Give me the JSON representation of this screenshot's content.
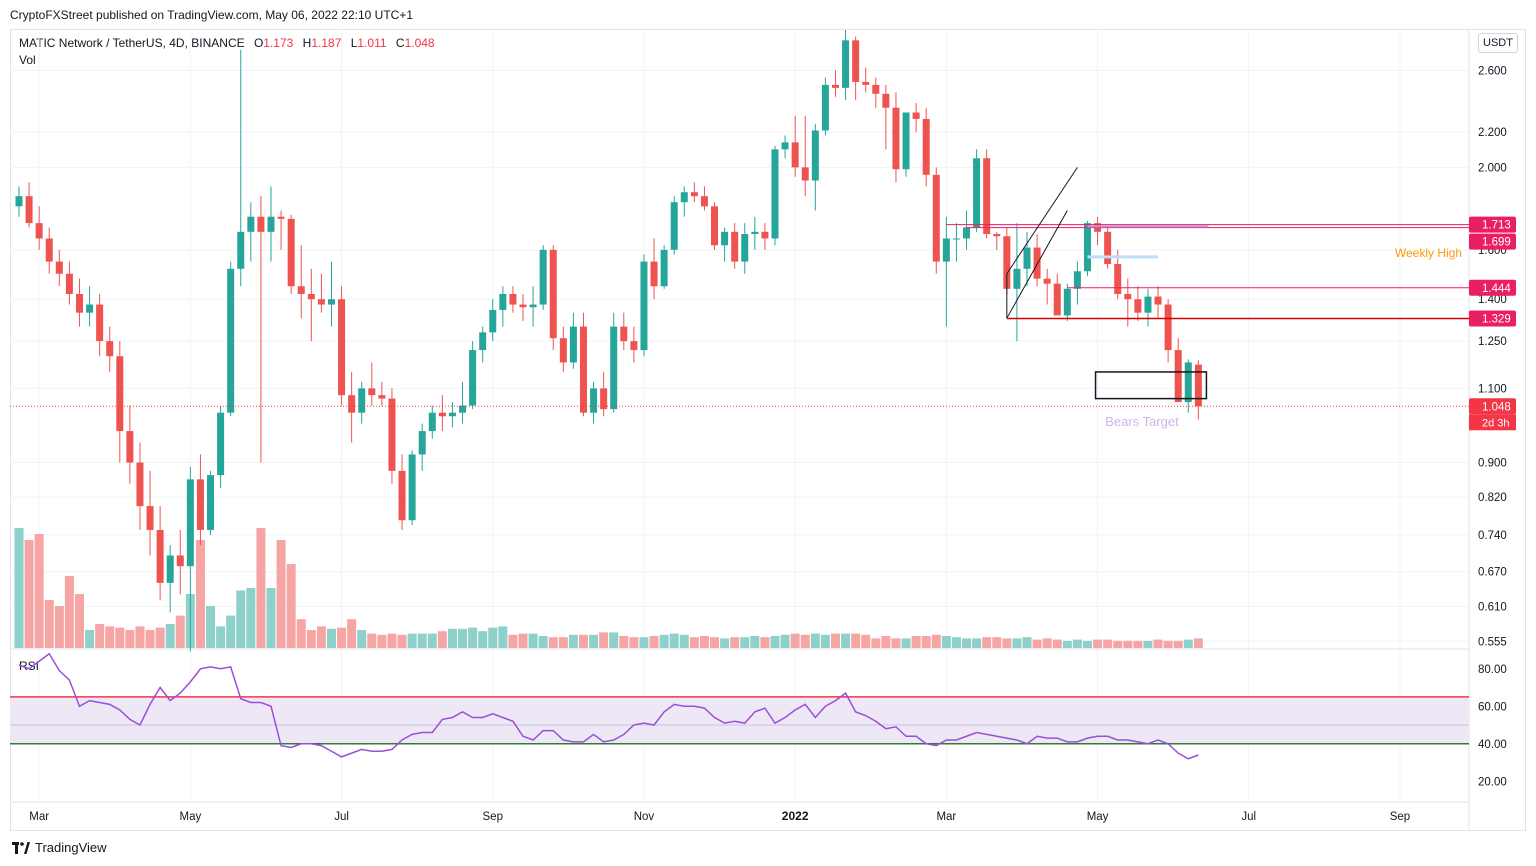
{
  "header": {
    "publisher": "CryptoFXStreet published on TradingView.com, May 06, 2022 22:10 UTC+1",
    "symbol": "MATIC Network / TetherUS, 4D, BINANCE",
    "ohlc": {
      "open_label": "O",
      "open": "1.173",
      "high_label": "H",
      "high": "1.187",
      "low_label": "L",
      "low": "1.011",
      "close_label": "C",
      "close": "1.048"
    },
    "vol_label": "Vol",
    "rsi_label": "RSI",
    "currency": "USDT"
  },
  "footer": {
    "brand": "TradingView"
  },
  "colors": {
    "up": "#26a69a",
    "down": "#ef5350",
    "up_vol": "#8dd1ca",
    "down_vol": "#f5a5a3",
    "rsi_line": "#9c4fd6",
    "rsi_band": "#ede7f6",
    "overbought": "#f23645",
    "oversold": "#2e7d32",
    "accent_orange": "#ff9800"
  },
  "chart_data": {
    "type": "candlestick",
    "title": "MATIC Network / TetherUS, 4D, BINANCE",
    "price_axis": {
      "scale": "log",
      "ticks": [
        2.6,
        2.2,
        2.0,
        1.6,
        1.4,
        1.25,
        1.1,
        0.9,
        0.82,
        0.74,
        0.67,
        0.61,
        0.555
      ],
      "tick_labels": [
        "2.600",
        "2.200",
        "2.000",
        "1.600",
        "1.400",
        "1.250",
        "1.100",
        "0.900",
        "0.820",
        "0.740",
        "0.670",
        "0.610",
        "0.555"
      ],
      "ylim": [
        0.545,
        2.9
      ]
    },
    "rsi_axis": {
      "ticks": [
        80,
        60,
        40,
        20
      ],
      "tick_labels": [
        "80.00",
        "60.00",
        "40.00",
        "20.00"
      ],
      "ylim": [
        10,
        90
      ],
      "overbought": 65,
      "oversold": 40
    },
    "time_axis": {
      "months": [
        "Mar",
        "May",
        "Jul",
        "Sep",
        "Nov",
        "2022",
        "Mar",
        "May",
        "Jul",
        "Sep"
      ],
      "month_index": [
        2,
        17,
        32,
        47,
        62,
        77,
        92,
        107,
        122,
        137
      ]
    },
    "candles": [
      [
        1.8,
        1.9,
        1.75,
        1.85
      ],
      [
        1.85,
        1.92,
        1.7,
        1.72
      ],
      [
        1.72,
        1.8,
        1.6,
        1.65
      ],
      [
        1.65,
        1.7,
        1.5,
        1.55
      ],
      [
        1.55,
        1.6,
        1.45,
        1.5
      ],
      [
        1.5,
        1.55,
        1.38,
        1.42
      ],
      [
        1.42,
        1.48,
        1.3,
        1.35
      ],
      [
        1.35,
        1.45,
        1.3,
        1.38
      ],
      [
        1.38,
        1.42,
        1.2,
        1.25
      ],
      [
        1.25,
        1.3,
        1.15,
        1.2
      ],
      [
        1.2,
        1.25,
        0.9,
        0.98
      ],
      [
        0.98,
        1.05,
        0.85,
        0.9
      ],
      [
        0.9,
        0.95,
        0.75,
        0.8
      ],
      [
        0.8,
        0.88,
        0.7,
        0.75
      ],
      [
        0.75,
        0.8,
        0.62,
        0.65
      ],
      [
        0.65,
        0.72,
        0.6,
        0.7
      ],
      [
        0.7,
        0.75,
        0.63,
        0.68
      ],
      [
        0.68,
        0.89,
        0.54,
        0.86
      ],
      [
        0.86,
        0.92,
        0.72,
        0.75
      ],
      [
        0.75,
        0.88,
        0.74,
        0.87
      ],
      [
        0.87,
        1.05,
        0.84,
        1.03
      ],
      [
        1.03,
        1.55,
        1.02,
        1.52
      ],
      [
        1.52,
        2.75,
        1.45,
        1.68
      ],
      [
        1.68,
        1.82,
        1.55,
        1.75
      ],
      [
        1.75,
        1.85,
        0.9,
        1.68
      ],
      [
        1.68,
        1.9,
        1.55,
        1.75
      ],
      [
        1.75,
        1.78,
        1.6,
        1.74
      ],
      [
        1.74,
        1.76,
        1.42,
        1.45
      ],
      [
        1.45,
        1.62,
        1.33,
        1.42
      ],
      [
        1.42,
        1.52,
        1.25,
        1.4
      ],
      [
        1.4,
        1.5,
        1.35,
        1.38
      ],
      [
        1.38,
        1.55,
        1.3,
        1.4
      ],
      [
        1.4,
        1.45,
        1.05,
        1.08
      ],
      [
        1.08,
        1.15,
        0.95,
        1.03
      ],
      [
        1.03,
        1.12,
        1.0,
        1.1
      ],
      [
        1.1,
        1.18,
        1.05,
        1.08
      ],
      [
        1.08,
        1.12,
        1.05,
        1.07
      ],
      [
        1.07,
        1.1,
        0.85,
        0.88
      ],
      [
        0.88,
        0.92,
        0.75,
        0.77
      ],
      [
        0.77,
        0.93,
        0.76,
        0.92
      ],
      [
        0.92,
        1.0,
        0.88,
        0.98
      ],
      [
        0.98,
        1.05,
        0.96,
        1.03
      ],
      [
        1.03,
        1.08,
        0.98,
        1.02
      ],
      [
        1.02,
        1.06,
        0.99,
        1.03
      ],
      [
        1.03,
        1.12,
        1.0,
        1.05
      ],
      [
        1.05,
        1.25,
        1.04,
        1.22
      ],
      [
        1.22,
        1.3,
        1.18,
        1.28
      ],
      [
        1.28,
        1.4,
        1.25,
        1.36
      ],
      [
        1.36,
        1.45,
        1.3,
        1.42
      ],
      [
        1.42,
        1.45,
        1.35,
        1.38
      ],
      [
        1.38,
        1.42,
        1.32,
        1.37
      ],
      [
        1.37,
        1.45,
        1.3,
        1.38
      ],
      [
        1.38,
        1.62,
        1.36,
        1.6
      ],
      [
        1.6,
        1.62,
        1.22,
        1.26
      ],
      [
        1.26,
        1.3,
        1.15,
        1.18
      ],
      [
        1.18,
        1.35,
        1.16,
        1.3
      ],
      [
        1.3,
        1.35,
        1.02,
        1.03
      ],
      [
        1.03,
        1.12,
        1.0,
        1.1
      ],
      [
        1.1,
        1.15,
        1.02,
        1.04
      ],
      [
        1.04,
        1.35,
        1.03,
        1.3
      ],
      [
        1.3,
        1.35,
        1.22,
        1.25
      ],
      [
        1.25,
        1.3,
        1.18,
        1.22
      ],
      [
        1.22,
        1.58,
        1.2,
        1.55
      ],
      [
        1.55,
        1.65,
        1.4,
        1.45
      ],
      [
        1.45,
        1.62,
        1.44,
        1.6
      ],
      [
        1.6,
        1.85,
        1.58,
        1.82
      ],
      [
        1.82,
        1.9,
        1.75,
        1.87
      ],
      [
        1.87,
        1.92,
        1.82,
        1.85
      ],
      [
        1.85,
        1.9,
        1.78,
        1.8
      ],
      [
        1.8,
        1.82,
        1.6,
        1.62
      ],
      [
        1.62,
        1.7,
        1.55,
        1.68
      ],
      [
        1.68,
        1.72,
        1.52,
        1.55
      ],
      [
        1.55,
        1.72,
        1.5,
        1.67
      ],
      [
        1.67,
        1.75,
        1.6,
        1.68
      ],
      [
        1.68,
        1.72,
        1.6,
        1.65
      ],
      [
        1.65,
        2.12,
        1.62,
        2.1
      ],
      [
        2.1,
        2.18,
        2.05,
        2.14
      ],
      [
        2.14,
        2.3,
        1.95,
        2.0
      ],
      [
        2.0,
        2.3,
        1.85,
        1.93
      ],
      [
        1.93,
        2.25,
        1.78,
        2.21
      ],
      [
        2.21,
        2.55,
        2.18,
        2.5
      ],
      [
        2.5,
        2.6,
        2.42,
        2.48
      ],
      [
        2.48,
        2.9,
        2.4,
        2.82
      ],
      [
        2.82,
        2.85,
        2.4,
        2.52
      ],
      [
        2.52,
        2.62,
        2.45,
        2.5
      ],
      [
        2.5,
        2.55,
        2.35,
        2.44
      ],
      [
        2.44,
        2.5,
        2.1,
        2.35
      ],
      [
        2.35,
        2.45,
        1.92,
        1.99
      ],
      [
        1.99,
        2.32,
        1.95,
        2.32
      ],
      [
        2.32,
        2.38,
        2.2,
        2.28
      ],
      [
        2.28,
        2.35,
        1.9,
        1.96
      ],
      [
        1.96,
        2.0,
        1.5,
        1.55
      ],
      [
        1.55,
        1.75,
        1.3,
        1.65
      ],
      [
        1.65,
        1.72,
        1.55,
        1.65
      ],
      [
        1.65,
        1.78,
        1.6,
        1.7
      ],
      [
        1.7,
        2.1,
        1.68,
        2.05
      ],
      [
        2.05,
        2.1,
        1.65,
        1.67
      ],
      [
        1.67,
        1.68,
        1.6,
        1.66
      ],
      [
        1.66,
        1.7,
        1.42,
        1.44
      ],
      [
        1.44,
        1.72,
        1.25,
        1.52
      ],
      [
        1.52,
        1.68,
        1.45,
        1.61
      ],
      [
        1.61,
        1.67,
        1.45,
        1.48
      ],
      [
        1.48,
        1.52,
        1.38,
        1.46
      ],
      [
        1.46,
        1.5,
        1.35,
        1.34
      ],
      [
        1.34,
        1.46,
        1.32,
        1.44
      ],
      [
        1.44,
        1.55,
        1.38,
        1.51
      ],
      [
        1.51,
        1.73,
        1.49,
        1.72
      ],
      [
        1.72,
        1.75,
        1.62,
        1.68
      ],
      [
        1.68,
        1.7,
        1.52,
        1.54
      ],
      [
        1.54,
        1.6,
        1.4,
        1.42
      ],
      [
        1.42,
        1.48,
        1.3,
        1.4
      ],
      [
        1.4,
        1.45,
        1.32,
        1.35
      ],
      [
        1.35,
        1.44,
        1.3,
        1.41
      ],
      [
        1.41,
        1.45,
        1.33,
        1.38
      ],
      [
        1.38,
        1.4,
        1.18,
        1.22
      ],
      [
        1.22,
        1.26,
        1.08,
        1.06
      ],
      [
        1.06,
        1.19,
        1.03,
        1.18
      ],
      [
        1.173,
        1.187,
        1.011,
        1.048
      ]
    ],
    "volume_pct": [
      100,
      90,
      95,
      40,
      35,
      60,
      45,
      15,
      20,
      18,
      17,
      15,
      18,
      15,
      17,
      20,
      27,
      45,
      90,
      35,
      18,
      27,
      48,
      50,
      100,
      50,
      90,
      70,
      24,
      15,
      18,
      16,
      17,
      24,
      15,
      12,
      11,
      12,
      11,
      12,
      12,
      12,
      14,
      16,
      16,
      17,
      14,
      17,
      18,
      11,
      12,
      12,
      10,
      9,
      9,
      11,
      11,
      11,
      13,
      13,
      10,
      9,
      9,
      10,
      11,
      12,
      11,
      9,
      10,
      9,
      8,
      9,
      9,
      10,
      9,
      10,
      11,
      12,
      11,
      12,
      11,
      12,
      12,
      12,
      11,
      8,
      10,
      8,
      8,
      10,
      10,
      11,
      10,
      9,
      8,
      8,
      9,
      9,
      8,
      8,
      9,
      7,
      8,
      7,
      6,
      7,
      6,
      7,
      7,
      6,
      6,
      6,
      6,
      7,
      6,
      6,
      7,
      8
    ],
    "rsi": [
      82,
      80,
      84,
      88,
      79,
      74,
      60,
      63,
      62,
      61,
      58,
      53,
      50,
      61,
      70,
      63,
      67,
      73,
      80,
      81,
      80,
      81,
      64,
      62,
      62,
      60,
      39,
      38,
      40,
      40,
      39,
      36,
      33,
      35,
      37,
      36,
      36,
      37,
      42,
      45,
      46,
      46,
      53,
      54,
      57,
      54,
      54,
      56,
      54,
      52,
      44,
      42,
      47,
      47,
      42,
      41,
      41,
      45,
      41,
      42,
      45,
      50,
      51,
      50,
      57,
      61,
      60,
      60,
      59,
      54,
      51,
      52,
      51,
      57,
      59,
      51,
      54,
      58,
      61,
      54,
      60,
      63,
      67,
      57,
      55,
      52,
      48,
      49,
      44,
      44,
      40,
      39,
      42,
      42,
      44,
      46,
      45,
      44,
      43,
      42,
      40,
      44,
      43,
      43,
      41,
      41,
      43,
      44,
      44,
      42,
      42,
      41,
      40,
      42,
      40,
      35,
      32,
      34
    ],
    "levels": [
      {
        "price": 1.713,
        "label": "1.713",
        "color": "#e91e63"
      },
      {
        "price": 1.699,
        "label": "1.699",
        "color": "#e91e63"
      },
      {
        "price": 1.444,
        "label": "1.444",
        "color": "#e91e63"
      },
      {
        "price": 1.329,
        "label": "1.329",
        "color": "#e91e63"
      },
      {
        "price": 1.048,
        "label": "1.048",
        "color": "#f23645"
      }
    ],
    "countdown": "2d 3h",
    "annotations": {
      "weekly_high": "Weekly High",
      "bears_target": "Bears Target"
    }
  }
}
